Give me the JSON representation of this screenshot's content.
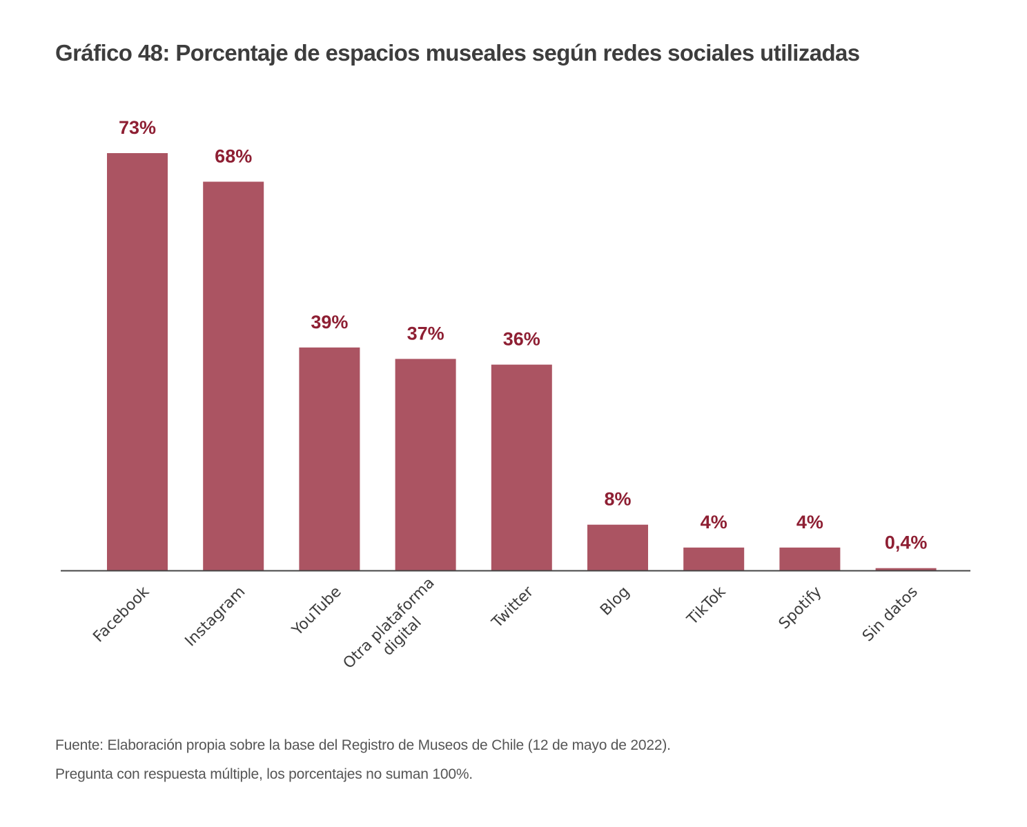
{
  "chart_data": {
    "type": "bar",
    "title": "Gráfico 48: Porcentaje de espacios museales según redes sociales utilizadas",
    "xlabel": "",
    "ylabel": "",
    "ylim": [
      0,
      73
    ],
    "grid": false,
    "categories": [
      "Facebook",
      "Instagram",
      "YouTube",
      "Otra plataforma digital",
      "Twitter",
      "Blog",
      "TikTok",
      "Spotify",
      "Sin datos"
    ],
    "category_lines": [
      [
        "Facebook"
      ],
      [
        "Instagram"
      ],
      [
        "YouTube"
      ],
      [
        "Otra plataforma",
        "digital"
      ],
      [
        "Twitter"
      ],
      [
        "Blog"
      ],
      [
        "TikTok"
      ],
      [
        "Spotify"
      ],
      [
        "Sin datos"
      ]
    ],
    "values": [
      73,
      68,
      39,
      37,
      36,
      8,
      4,
      4,
      0.4
    ],
    "data_labels": [
      "73%",
      "68%",
      "39%",
      "37%",
      "36%",
      "8%",
      "4%",
      "4%",
      "0,4%"
    ],
    "unit": "%",
    "tick_label_rotation": "-45deg"
  },
  "colors": {
    "bar": "#AB5462",
    "value_label": "#8E1F33",
    "axis": "#444444",
    "text": "#3d3d3d"
  },
  "footnotes": {
    "source": "Fuente: Elaboración propia sobre la base del Registro de Museos de Chile (12 de mayo de 2022).",
    "note": "Pregunta con respuesta múltiple, los porcentajes no suman 100%."
  }
}
